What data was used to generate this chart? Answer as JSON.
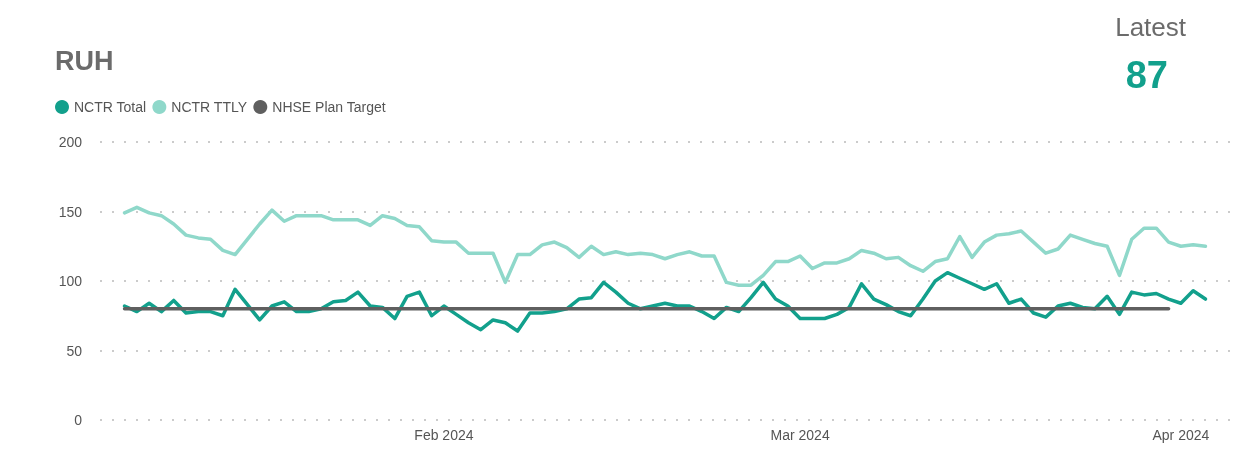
{
  "chart_data": {
    "type": "line",
    "title": "RUH",
    "annotations": [
      "Latest",
      "87"
    ],
    "x": [
      "2024-01-06",
      "2024-01-07",
      "2024-01-08",
      "2024-01-09",
      "2024-01-10",
      "2024-01-11",
      "2024-01-12",
      "2024-01-13",
      "2024-01-14",
      "2024-01-15",
      "2024-01-16",
      "2024-01-17",
      "2024-01-18",
      "2024-01-19",
      "2024-01-20",
      "2024-01-21",
      "2024-01-22",
      "2024-01-23",
      "2024-01-24",
      "2024-01-25",
      "2024-01-26",
      "2024-01-27",
      "2024-01-28",
      "2024-01-29",
      "2024-01-30",
      "2024-01-31",
      "2024-02-01",
      "2024-02-02",
      "2024-02-03",
      "2024-02-04",
      "2024-02-05",
      "2024-02-06",
      "2024-02-07",
      "2024-02-08",
      "2024-02-09",
      "2024-02-10",
      "2024-02-11",
      "2024-02-12",
      "2024-02-13",
      "2024-02-14",
      "2024-02-15",
      "2024-02-16",
      "2024-02-17",
      "2024-02-18",
      "2024-02-19",
      "2024-02-20",
      "2024-02-21",
      "2024-02-22",
      "2024-02-23",
      "2024-02-24",
      "2024-02-25",
      "2024-02-26",
      "2024-02-27",
      "2024-02-28",
      "2024-02-29",
      "2024-03-01",
      "2024-03-02",
      "2024-03-03",
      "2024-03-04",
      "2024-03-05",
      "2024-03-06",
      "2024-03-07",
      "2024-03-08",
      "2024-03-09",
      "2024-03-10",
      "2024-03-11",
      "2024-03-12",
      "2024-03-13",
      "2024-03-14",
      "2024-03-15",
      "2024-03-16",
      "2024-03-17",
      "2024-03-18",
      "2024-03-19",
      "2024-03-20",
      "2024-03-21",
      "2024-03-22",
      "2024-03-23",
      "2024-03-24",
      "2024-03-25",
      "2024-03-26",
      "2024-03-27",
      "2024-03-28",
      "2024-03-29",
      "2024-03-30",
      "2024-03-31",
      "2024-04-01",
      "2024-04-02",
      "2024-04-03"
    ],
    "series": [
      {
        "name": "NCTR Total",
        "color": "#12a08c",
        "values": [
          82,
          78,
          84,
          78,
          86,
          77,
          78,
          78,
          75,
          94,
          83,
          72,
          82,
          85,
          78,
          78,
          80,
          85,
          86,
          92,
          82,
          81,
          73,
          89,
          92,
          75,
          82,
          76,
          70,
          65,
          72,
          70,
          64,
          77,
          77,
          78,
          80,
          87,
          88,
          99,
          92,
          84,
          80,
          82,
          84,
          82,
          82,
          78,
          73,
          81,
          78,
          88,
          99,
          87,
          82,
          73,
          73,
          73,
          76,
          81,
          98,
          87,
          83,
          78,
          75,
          87,
          100,
          106,
          102,
          98,
          94,
          98,
          84,
          87,
          77,
          74,
          82,
          84,
          81,
          80,
          89,
          76,
          92,
          90,
          91,
          87,
          84,
          93,
          87
        ]
      },
      {
        "name": "NCTR TTLY",
        "color": "#8fd8ca",
        "values": [
          149,
          153,
          149,
          147,
          141,
          133,
          131,
          130,
          122,
          119,
          130,
          141,
          151,
          143,
          147,
          147,
          147,
          144,
          144,
          144,
          140,
          147,
          145,
          140,
          139,
          129,
          128,
          128,
          120,
          120,
          120,
          99,
          119,
          119,
          126,
          128,
          124,
          117,
          125,
          119,
          121,
          119,
          120,
          119,
          116,
          119,
          121,
          118,
          118,
          99,
          97,
          97,
          104,
          114,
          114,
          118,
          109,
          113,
          113,
          116,
          122,
          120,
          116,
          117,
          111,
          107,
          114,
          116,
          132,
          117,
          128,
          133,
          134,
          136,
          128,
          120,
          123,
          133,
          130,
          127,
          125,
          104,
          130,
          138,
          138,
          128,
          125,
          126,
          125
        ]
      },
      {
        "name": "NHSE Plan Target",
        "color": "#5f5f5f",
        "x": [
          "2024-01-06",
          "2024-03-31"
        ],
        "values": [
          80,
          80
        ]
      }
    ],
    "xlim": [
      "2024-01-04",
      "2024-04-05"
    ],
    "xticks": [
      {
        "value": "2024-02-01",
        "label": "Feb 2024"
      },
      {
        "value": "2024-03-01",
        "label": "Mar 2024"
      },
      {
        "value": "2024-04-01",
        "label": "Apr 2024"
      }
    ],
    "ylim": [
      0,
      200
    ],
    "yticks": [
      0,
      50,
      100,
      150,
      200
    ],
    "grid": "y",
    "legend": "top left",
    "marker": "none",
    "line_style": "solid"
  }
}
